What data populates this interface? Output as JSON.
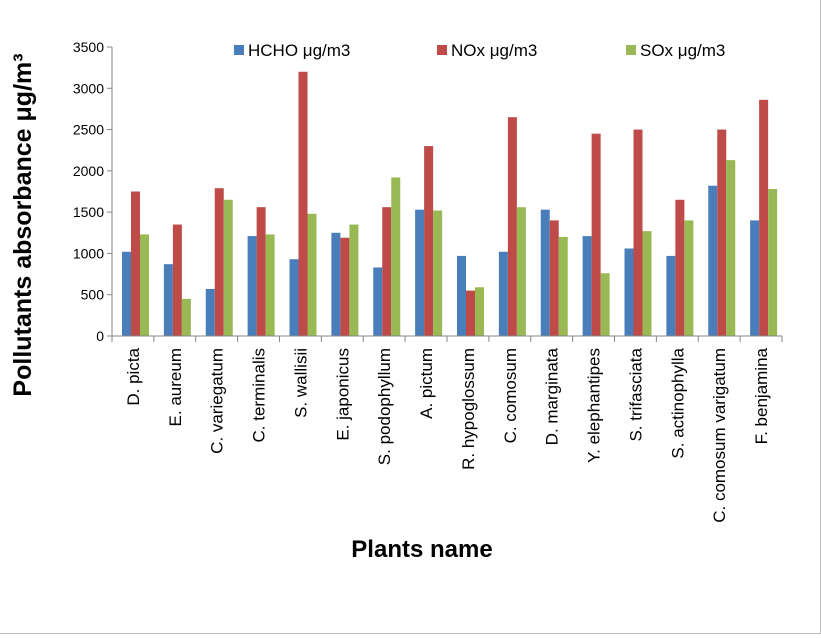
{
  "chart_data": {
    "type": "bar",
    "title": "",
    "xlabel": "Plants name",
    "ylabel": "Pollutants absorbance μg/m³",
    "ylim": [
      0,
      3500
    ],
    "yticks": [
      0,
      500,
      1000,
      1500,
      2000,
      2500,
      3000,
      3500
    ],
    "grid": false,
    "legend": "top",
    "categories": [
      "D. picta",
      "E. aureum",
      "C. variegatum",
      "C. terminalis",
      "S. wallisii",
      "E. japonicus",
      "S. podophyllum",
      "A. pictum",
      "R. hypoglossum",
      "C. comosum",
      "D. marginata",
      "Y. elephantipes",
      "S. trifasciata",
      "S. actinophylla",
      "C. comosum varigatum",
      "F. benjamina"
    ],
    "series": [
      {
        "name": "HCHO μg/m3",
        "color": "#4a7ebb",
        "values": [
          1020,
          870,
          570,
          1210,
          930,
          1250,
          830,
          1530,
          970,
          1020,
          1530,
          1210,
          1060,
          970,
          1820,
          1400
        ]
      },
      {
        "name": "NOx μg/m3",
        "color": "#be4b48",
        "values": [
          1750,
          1350,
          1790,
          1560,
          3200,
          1190,
          1560,
          2300,
          550,
          2650,
          1400,
          2450,
          2500,
          1650,
          2500,
          2860
        ]
      },
      {
        "name": "SOx μg/m3",
        "color": "#98b954",
        "values": [
          1230,
          450,
          1650,
          1230,
          1480,
          1350,
          1920,
          1520,
          590,
          1560,
          1200,
          760,
          1270,
          1400,
          2130,
          1780
        ]
      }
    ]
  }
}
